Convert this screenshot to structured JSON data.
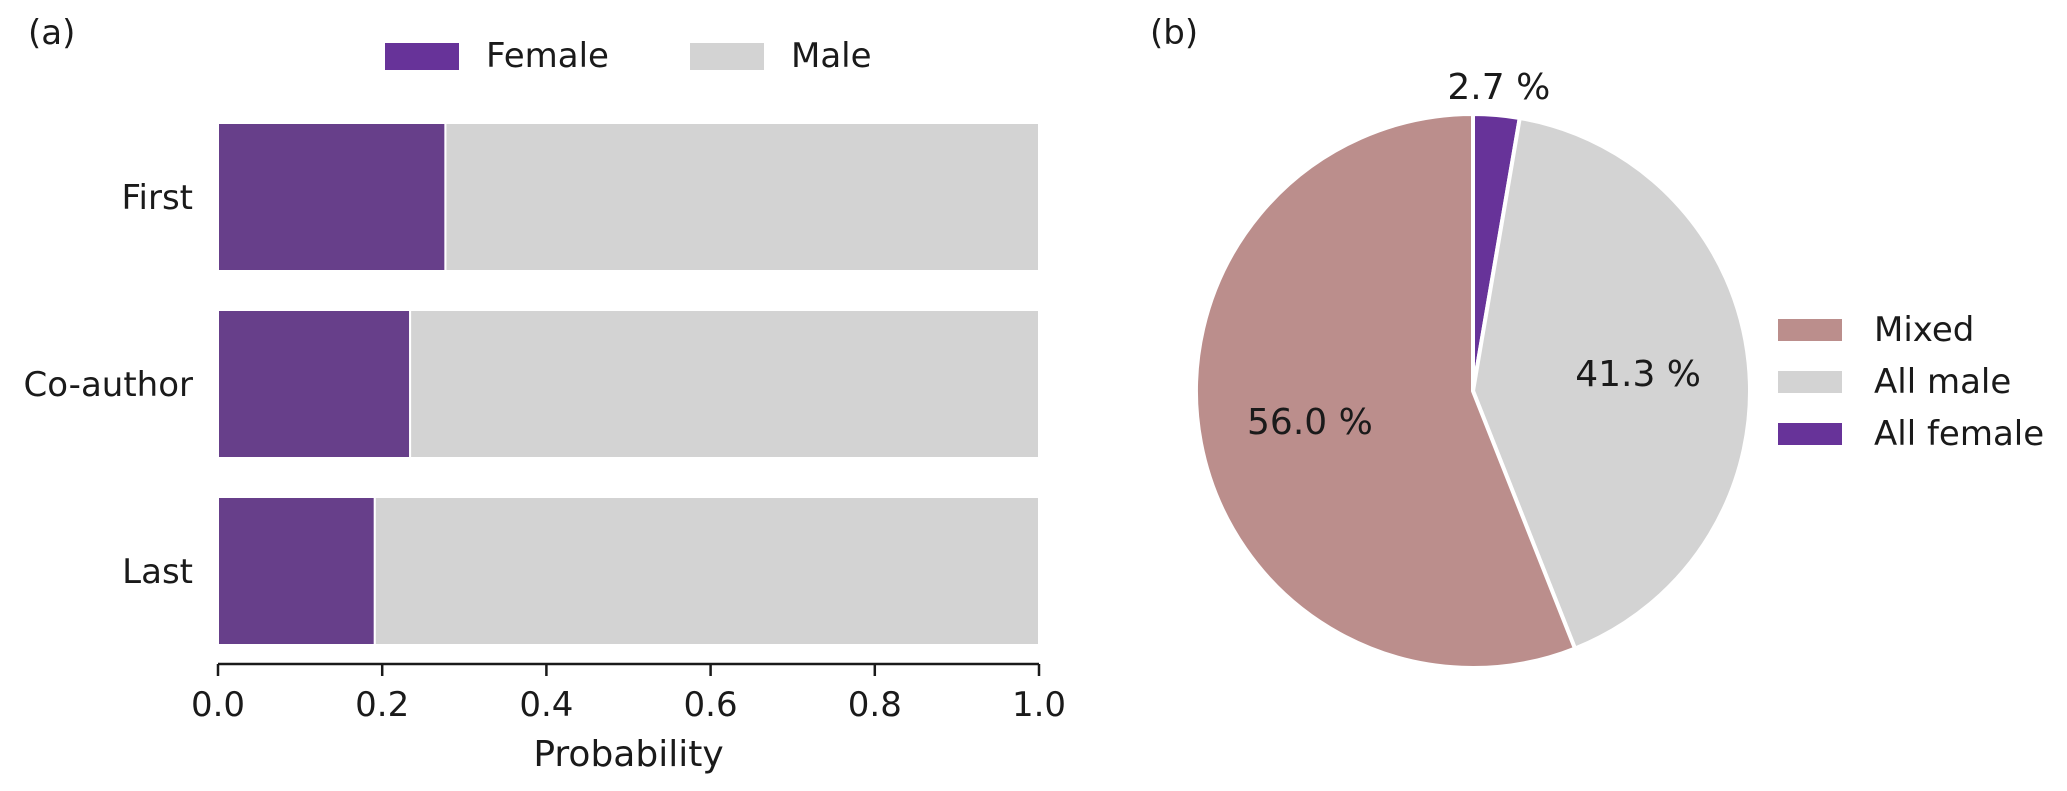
{
  "panels": {
    "a_label": "(a)",
    "b_label": "(b)"
  },
  "colors": {
    "female": "#673f8a",
    "female_legend": "#673399",
    "male": "#d3d3d3",
    "mixed": "#bb8e8c",
    "all_female": "#673399",
    "axis": "#1a1a1a"
  },
  "chart_data": [
    {
      "type": "bar",
      "orientation": "horizontal",
      "stacked": true,
      "categories": [
        "First",
        "Co-author",
        "Last"
      ],
      "series": [
        {
          "name": "Female",
          "values": [
            0.277,
            0.234,
            0.191
          ]
        },
        {
          "name": "Male",
          "values": [
            0.723,
            0.766,
            0.809
          ]
        }
      ],
      "xlabel": "Probability",
      "ylabel": "",
      "xlim": [
        0.0,
        1.0
      ],
      "xticks": [
        "0.0",
        "0.2",
        "0.4",
        "0.6",
        "0.8",
        "1.0"
      ],
      "grid": false,
      "legend_position": "top"
    },
    {
      "type": "pie",
      "labels": [
        "Mixed",
        "All male",
        "All female"
      ],
      "values": [
        56.0,
        41.3,
        2.7
      ],
      "value_labels": [
        "56.0 %",
        "41.3 %",
        "2.7 %"
      ],
      "legend_position": "right"
    }
  ]
}
